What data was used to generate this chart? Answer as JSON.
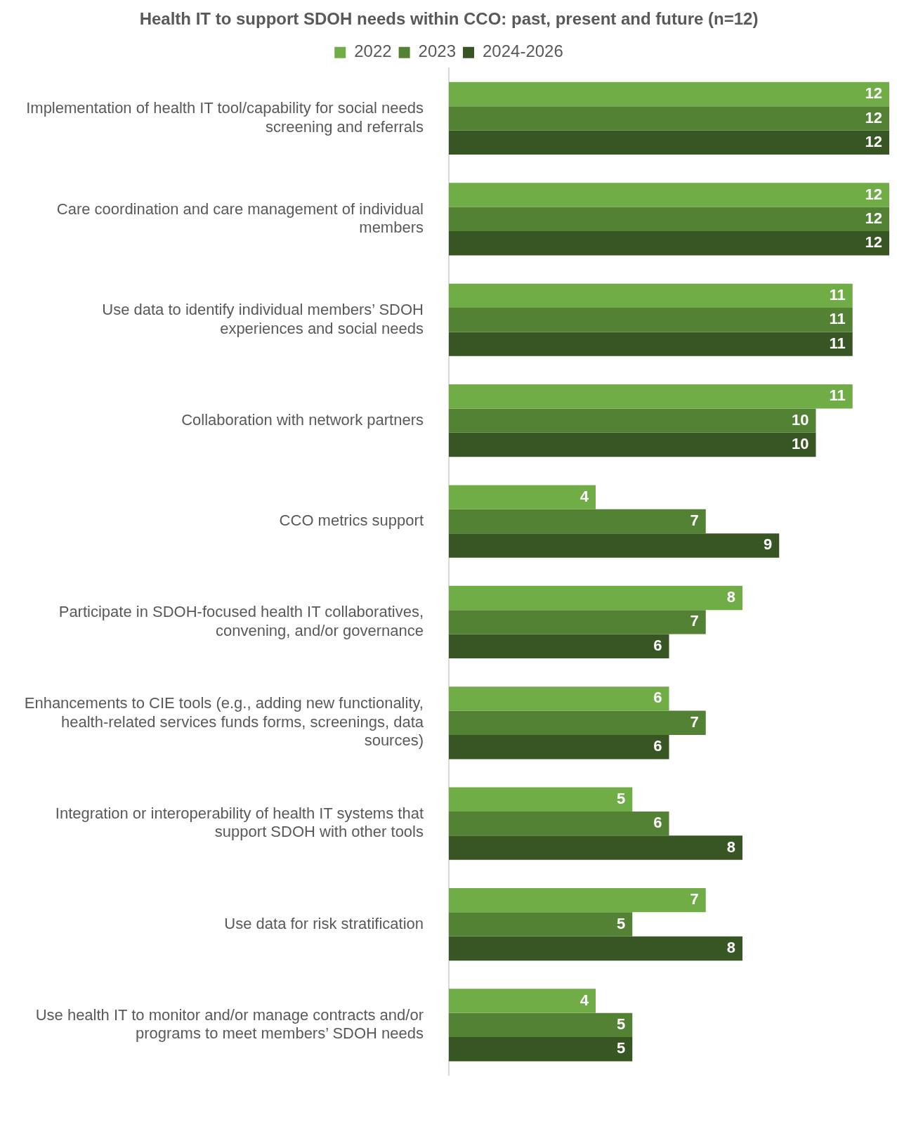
{
  "chart_data": {
    "type": "bar",
    "orientation": "horizontal",
    "title": "Health IT to support SDOH needs within CCO: past, present and future (n=12)",
    "categories": [
      "Implementation of health IT tool/capability for social needs screening and referrals",
      "Care coordination and care management of individual members",
      "Use data to identify individual members’ SDOH experiences and social needs",
      "Collaboration with network partners",
      "CCO metrics support",
      "Participate in SDOH-focused health IT collaboratives, convening, and/or governance",
      "Enhancements to CIE tools (e.g., adding new functionality, health-related services funds forms, screenings, data sources)",
      "Integration or interoperability of health IT systems that support SDOH with other tools",
      "Use data for risk stratification",
      "Use health IT to monitor and/or manage contracts and/or programs to meet members’ SDOH needs"
    ],
    "series": [
      {
        "name": "2022",
        "color": "#70ad47",
        "values": [
          12,
          12,
          11,
          11,
          4,
          8,
          6,
          5,
          7,
          4
        ]
      },
      {
        "name": "2023",
        "color": "#548235",
        "values": [
          12,
          12,
          11,
          10,
          7,
          7,
          7,
          6,
          5,
          5
        ]
      },
      {
        "name": "2024-2026",
        "color": "#375623",
        "values": [
          12,
          12,
          11,
          10,
          9,
          6,
          6,
          8,
          8,
          5
        ]
      }
    ],
    "data_labels": true,
    "legend": "top"
  }
}
